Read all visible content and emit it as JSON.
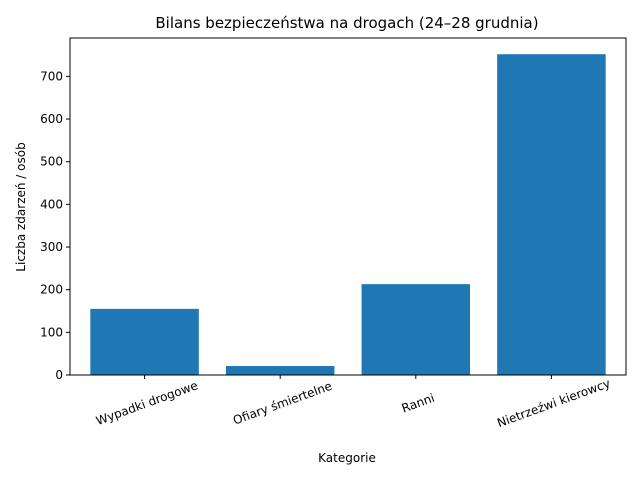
{
  "chart_data": {
    "type": "bar",
    "title": "Bilans bezpieczeństwa na drogach (24–28 grudnia)",
    "xlabel": "Kategorie",
    "ylabel": "Liczba zdarzeń / osób",
    "categories": [
      "Wypadki drogowe",
      "Ofiary śmiertelne",
      "Ranni",
      "Nietrzeźwi kierowcy"
    ],
    "values": [
      155,
      21,
      213,
      752
    ],
    "ylim": [
      0,
      790
    ],
    "yticks": [
      0,
      100,
      200,
      300,
      400,
      500,
      600,
      700
    ],
    "bar_color": "#1f77b4",
    "grid": false,
    "legend": "none"
  }
}
